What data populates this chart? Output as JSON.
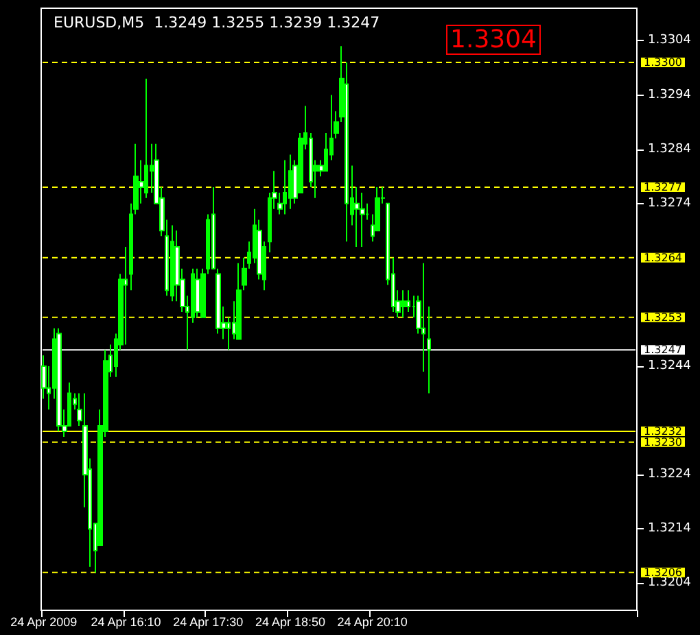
{
  "chart_data": {
    "type": "candlestick",
    "title": "EURUSD,M5  1.3249 1.3255 1.3239 1.3247",
    "categories": [
      "24 Apr 2009",
      null,
      null,
      null,
      null,
      null,
      null,
      null,
      null,
      null,
      null,
      null,
      null,
      null,
      null,
      null,
      "24 Apr 16:10",
      null,
      null,
      null,
      null,
      null,
      null,
      null,
      null,
      null,
      null,
      null,
      null,
      null,
      null,
      null,
      "24 Apr 17:30",
      null,
      null,
      null,
      null,
      null,
      null,
      null,
      null,
      null,
      null,
      null,
      null,
      null,
      null,
      null,
      "24 Apr 18:50",
      null,
      null,
      null,
      null,
      null,
      null,
      null,
      null,
      null,
      null,
      null,
      null,
      null,
      null,
      null,
      "24 Apr 20:10",
      null,
      null,
      null,
      null,
      null,
      null,
      null,
      null,
      null,
      null,
      null,
      null,
      null,
      null,
      null,
      null,
      null,
      null,
      null,
      null,
      null,
      null,
      null,
      null,
      null,
      null,
      null,
      null,
      null,
      null,
      null,
      null,
      null,
      null,
      null,
      null,
      null,
      null,
      null,
      null,
      null,
      null,
      null,
      null,
      null,
      null,
      null,
      null,
      null,
      null,
      null
    ],
    "ohlc": [
      [
        1.3244,
        1.3246,
        1.3238,
        1.324
      ],
      [
        1.324,
        1.3244,
        1.3236,
        1.3239
      ],
      [
        1.324,
        1.3251,
        1.3238,
        1.3249
      ],
      [
        1.325,
        1.3251,
        1.3232,
        1.3233
      ],
      [
        1.3233,
        1.3236,
        1.3231,
        1.3232
      ],
      [
        1.3233,
        1.3241,
        1.3233,
        1.3239
      ],
      [
        1.3238,
        1.3239,
        1.3236,
        1.3237
      ],
      [
        1.3236,
        1.3239,
        1.3233,
        1.3234
      ],
      [
        1.3233,
        1.3239,
        1.3218,
        1.3224
      ],
      [
        1.3225,
        1.3227,
        1.3207,
        1.3214
      ],
      [
        1.3215,
        1.3215,
        1.3206,
        1.321
      ],
      [
        1.3211,
        1.3236,
        1.3211,
        1.3233
      ],
      [
        1.3232,
        1.3247,
        1.3231,
        1.3245
      ],
      [
        1.3246,
        1.3248,
        1.3242,
        1.3243
      ],
      [
        1.3244,
        1.325,
        1.3242,
        1.3249
      ],
      [
        1.3248,
        1.3261,
        1.3247,
        1.326
      ],
      [
        1.326,
        1.3266,
        1.3248,
        1.3259
      ],
      [
        1.3261,
        1.3274,
        1.3258,
        1.3272
      ],
      [
        1.3273,
        1.3285,
        1.3272,
        1.3279
      ],
      [
        1.3278,
        1.3282,
        1.3274,
        1.3277
      ],
      [
        1.3276,
        1.3297,
        1.3275,
        1.3281
      ],
      [
        1.328,
        1.3285,
        1.3276,
        1.3281
      ],
      [
        1.3282,
        1.3285,
        1.3274,
        1.3274
      ],
      [
        1.3275,
        1.3277,
        1.3268,
        1.3269
      ],
      [
        1.3268,
        1.3271,
        1.3257,
        1.3258
      ],
      [
        1.3257,
        1.327,
        1.3256,
        1.3267
      ],
      [
        1.3266,
        1.3269,
        1.3256,
        1.3259
      ],
      [
        1.326,
        1.3262,
        1.3254,
        1.3255
      ],
      [
        1.3255,
        1.3257,
        1.3247,
        1.3254
      ],
      [
        1.3253,
        1.3262,
        1.3252,
        1.3261
      ],
      [
        1.326,
        1.3262,
        1.3253,
        1.3254
      ],
      [
        1.3253,
        1.3262,
        1.3253,
        1.3261
      ],
      [
        1.3262,
        1.3272,
        1.3261,
        1.3271
      ],
      [
        1.3272,
        1.3277,
        1.3262,
        1.3262
      ],
      [
        1.3261,
        1.3262,
        1.325,
        1.3251
      ],
      [
        1.3252,
        1.3255,
        1.3249,
        1.3251
      ],
      [
        1.3252,
        1.3253,
        1.3247,
        1.3251
      ],
      [
        1.3252,
        1.3256,
        1.3249,
        1.325
      ],
      [
        1.3249,
        1.3263,
        1.3249,
        1.3258
      ],
      [
        1.3259,
        1.3264,
        1.3258,
        1.3262
      ],
      [
        1.3263,
        1.3267,
        1.3262,
        1.3265
      ],
      [
        1.3264,
        1.3273,
        1.3263,
        1.327
      ],
      [
        1.3269,
        1.3271,
        1.326,
        1.3261
      ],
      [
        1.326,
        1.3267,
        1.3258,
        1.3266
      ],
      [
        1.3267,
        1.3276,
        1.3265,
        1.3275
      ],
      [
        1.3276,
        1.328,
        1.3273,
        1.3275
      ],
      [
        1.3274,
        1.3276,
        1.3272,
        1.3273
      ],
      [
        1.3274,
        1.3282,
        1.3272,
        1.3276
      ],
      [
        1.3275,
        1.3283,
        1.3273,
        1.328
      ],
      [
        1.3281,
        1.3282,
        1.3274,
        1.3275
      ],
      [
        1.3276,
        1.3287,
        1.3276,
        1.3286
      ],
      [
        1.3285,
        1.3292,
        1.3284,
        1.3287
      ],
      [
        1.3286,
        1.3287,
        1.3277,
        1.3278
      ],
      [
        1.328,
        1.3282,
        1.3275,
        1.3281
      ],
      [
        1.3281,
        1.3282,
        1.3279,
        1.328
      ],
      [
        1.328,
        1.3287,
        1.328,
        1.3284
      ],
      [
        1.3283,
        1.3294,
        1.3282,
        1.3286
      ],
      [
        1.3287,
        1.3291,
        1.3286,
        1.3289
      ],
      [
        1.329,
        1.3303,
        1.3289,
        1.3297
      ],
      [
        1.3296,
        1.33,
        1.3267,
        1.3274
      ],
      [
        1.3272,
        1.3281,
        1.327,
        1.3275
      ],
      [
        1.3274,
        1.3277,
        1.3266,
        1.3273
      ],
      [
        1.3273,
        1.3276,
        1.3266,
        1.3272
      ],
      [
        1.3272,
        1.3274,
        1.3271,
        1.3272
      ],
      [
        1.327,
        1.3272,
        1.3267,
        1.3268
      ],
      [
        1.3269,
        1.3277,
        1.3269,
        1.3275
      ],
      [
        1.3275,
        1.3277,
        1.3274,
        1.3275
      ],
      [
        1.3274,
        1.3274,
        1.3259,
        1.326
      ],
      [
        1.3261,
        1.3264,
        1.3254,
        1.3255
      ],
      [
        1.3256,
        1.3258,
        1.3253,
        1.3254
      ],
      [
        1.3255,
        1.3258,
        1.3253,
        1.3256
      ],
      [
        1.3256,
        1.3258,
        1.3254,
        1.3255
      ],
      [
        1.3255,
        1.3257,
        1.3253,
        1.3255
      ],
      [
        1.3256,
        1.3257,
        1.325,
        1.3251
      ],
      [
        1.3251,
        1.3263,
        1.3243,
        1.325
      ],
      [
        1.3249,
        1.3255,
        1.3239,
        1.3247
      ],
      null,
      null,
      null,
      null,
      null,
      null,
      null,
      null,
      null,
      null,
      null,
      null,
      null,
      null,
      null,
      null,
      null,
      null,
      null,
      null,
      null,
      null,
      null,
      null,
      null,
      null,
      null,
      null,
      null,
      null,
      null,
      null,
      null,
      null,
      null,
      null,
      null,
      null,
      null,
      null
    ],
    "color": "#00ff00",
    "ylim": [
      1.3199,
      1.331
    ],
    "yticks": [
      1.3304,
      1.3294,
      1.3284,
      1.3274,
      1.3244,
      1.3224,
      1.3214,
      1.3204
    ],
    "ref_lines": [
      {
        "axis": "y",
        "value": 1.33,
        "label": "1.3300",
        "color": "#ffff00",
        "line_style": "dashed"
      },
      {
        "axis": "y",
        "value": 1.3277,
        "label": "1.3277",
        "color": "#ffff00",
        "line_style": "dashed"
      },
      {
        "axis": "y",
        "value": 1.3264,
        "label": "1.3264",
        "color": "#ffff00",
        "line_style": "dashed"
      },
      {
        "axis": "y",
        "value": 1.3253,
        "label": "1.3253",
        "color": "#ffff00",
        "line_style": "dashed"
      },
      {
        "axis": "y",
        "value": 1.3247,
        "label": "1.3247",
        "color": "#ffffff",
        "line_style": "solid"
      },
      {
        "axis": "y",
        "value": 1.3232,
        "label": "1.3232",
        "color": "#ffff00",
        "line_style": "solid"
      },
      {
        "axis": "y",
        "value": 1.323,
        "label": "1.3230",
        "color": "#ffff00",
        "line_style": "dashed"
      },
      {
        "axis": "y",
        "value": 1.3206,
        "label": "1.3206",
        "color": "#ffff00",
        "line_style": "dashed"
      }
    ],
    "annotations": [
      "1.3304"
    ],
    "grid": false
  }
}
